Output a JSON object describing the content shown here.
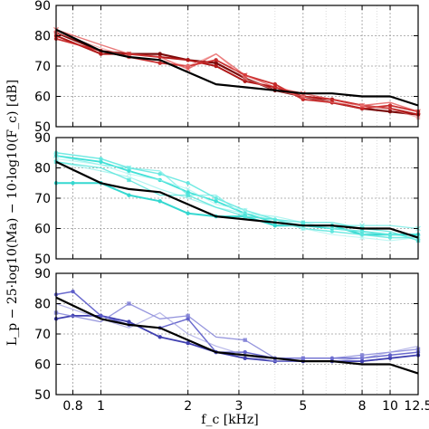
{
  "figure": {
    "ylabel": "L_p − 25·log10(Ma) − 10·log10(F_c) [dB]",
    "xlabel": "f_c [kHz]"
  },
  "chart_data": [
    {
      "type": "line",
      "panel": "top",
      "xscale": "log",
      "xlim": [
        0.7,
        12.5
      ],
      "ylim": [
        50,
        90
      ],
      "yticks": [
        50,
        60,
        70,
        80,
        90
      ],
      "xticks": [
        0.8,
        1,
        2,
        3,
        5,
        8,
        10,
        12.5
      ],
      "xtick_labels": [
        "0.8",
        "1",
        "2",
        "3",
        "5",
        "8",
        "10",
        "12.5"
      ],
      "grid": true,
      "reference": {
        "color": "#000000",
        "x": [
          0.7,
          1.0,
          1.25,
          1.6,
          2.0,
          2.5,
          3.15,
          4.0,
          5.0,
          6.3,
          8.0,
          10.0,
          12.5
        ],
        "y": [
          82,
          75,
          73,
          72,
          68,
          64,
          63,
          62,
          61,
          61,
          60,
          60,
          57
        ]
      },
      "series": [
        {
          "color": "#7a0b0b",
          "width": 2.2,
          "opacity": 1.0,
          "marker": "circle",
          "x": [
            0.7,
            1.0,
            1.25,
            1.6,
            2.0,
            2.5,
            3.15,
            4.0,
            5.0,
            6.3,
            8.0,
            10.0,
            12.5
          ],
          "y": [
            81,
            75,
            74,
            74,
            72,
            71,
            66,
            62,
            60,
            58,
            56,
            55,
            54
          ]
        },
        {
          "color": "#b01818",
          "width": 2.0,
          "opacity": 1.0,
          "marker": "circle",
          "x": [
            0.7,
            1.0,
            1.25,
            1.6,
            2.0,
            2.5,
            3.15,
            4.0,
            5.0,
            6.3,
            8.0,
            10.0,
            12.5
          ],
          "y": [
            80,
            74,
            74,
            73,
            72,
            70,
            65,
            63,
            60,
            59,
            57,
            56,
            54
          ]
        },
        {
          "color": "#c62828",
          "width": 1.8,
          "opacity": 0.95,
          "marker": "circle",
          "x": [
            0.7,
            1.0,
            1.25,
            1.6,
            2.0,
            2.5,
            3.15,
            4.0,
            5.0,
            6.3,
            8.0,
            10.0,
            12.5
          ],
          "y": [
            79,
            75,
            73,
            71,
            70,
            72,
            67,
            64,
            59,
            58,
            56,
            57,
            55
          ]
        },
        {
          "color": "#e04040",
          "width": 1.4,
          "opacity": 0.7,
          "marker": "x",
          "x": [
            0.7,
            1.0,
            1.25,
            1.6,
            2.0,
            2.5,
            3.15,
            4.0,
            5.0,
            6.3,
            8.0,
            10.0,
            12.5
          ],
          "y": [
            82,
            77,
            74,
            73,
            69,
            74,
            67,
            63,
            61,
            59,
            57,
            58,
            55
          ]
        },
        {
          "color": "#f08080",
          "width": 1.2,
          "opacity": 0.6,
          "marker": "square",
          "x": [
            0.7,
            1.0,
            1.25,
            1.6,
            2.0,
            2.5,
            3.15,
            4.0,
            5.0,
            6.3,
            8.0,
            10.0,
            12.5
          ],
          "y": [
            81,
            76,
            73,
            72,
            70,
            74,
            66,
            62,
            60,
            58,
            57,
            56,
            53
          ]
        }
      ]
    },
    {
      "type": "line",
      "panel": "middle",
      "xscale": "log",
      "xlim": [
        0.7,
        12.5
      ],
      "ylim": [
        50,
        90
      ],
      "yticks": [
        50,
        60,
        70,
        80,
        90
      ],
      "xticks": [
        0.8,
        1,
        2,
        3,
        5,
        8,
        10,
        12.5
      ],
      "xtick_labels": [
        "0.8",
        "1",
        "2",
        "3",
        "5",
        "8",
        "10",
        "12.5"
      ],
      "grid": true,
      "reference": {
        "color": "#000000",
        "x": [
          0.7,
          1.0,
          1.25,
          1.6,
          2.0,
          2.5,
          3.15,
          4.0,
          5.0,
          6.3,
          8.0,
          10.0,
          12.5
        ],
        "y": [
          82,
          75,
          73,
          72,
          68,
          64,
          63,
          62,
          61,
          61,
          60,
          60,
          57
        ]
      },
      "series": [
        {
          "color": "#35d8d0",
          "width": 2.0,
          "opacity": 1.0,
          "marker": "circle",
          "x": [
            0.7,
            0.8,
            1.0,
            1.25,
            1.6,
            2.0,
            2.5,
            3.15,
            4.0,
            5.0,
            6.3,
            8.0,
            10.0,
            12.5
          ],
          "y": [
            75,
            75,
            75,
            71,
            69,
            65,
            64,
            64,
            61,
            61,
            61,
            58,
            58,
            58
          ]
        },
        {
          "color": "#3ee0d6",
          "width": 1.8,
          "opacity": 1.0,
          "marker": "circle",
          "x": [
            0.7,
            1.0,
            1.25,
            1.6,
            2.0,
            2.5,
            3.15,
            4.0,
            5.0,
            6.3,
            8.0,
            10.0,
            12.5
          ],
          "y": [
            84,
            82,
            79,
            76,
            72,
            69,
            65,
            62,
            61,
            60,
            59,
            58,
            58
          ]
        },
        {
          "color": "#5ce6de",
          "width": 1.5,
          "opacity": 0.85,
          "marker": "circle",
          "x": [
            0.7,
            1.0,
            1.25,
            1.6,
            2.0,
            2.5,
            3.15,
            4.0,
            5.0,
            6.3,
            8.0,
            10.0,
            12.5
          ],
          "y": [
            85,
            83,
            80,
            78,
            75,
            70,
            66,
            63,
            60,
            59,
            58,
            57,
            57
          ]
        },
        {
          "color": "#72ece6",
          "width": 1.3,
          "opacity": 0.75,
          "marker": "x",
          "x": [
            0.7,
            1.0,
            1.25,
            1.6,
            2.0,
            2.5,
            3.15,
            4.0,
            5.0,
            6.3,
            8.0,
            10.0,
            12.5
          ],
          "y": [
            84,
            81,
            80,
            79,
            71,
            71,
            64,
            63,
            61,
            61,
            61,
            61,
            60
          ]
        },
        {
          "color": "#8ff0ea",
          "width": 1.2,
          "opacity": 0.7,
          "marker": "none",
          "x": [
            0.7,
            1.0,
            1.25,
            1.6,
            2.0,
            2.5,
            3.15,
            4.0,
            5.0,
            6.3,
            8.0,
            10.0,
            12.5
          ],
          "y": [
            82,
            79,
            77,
            73,
            70,
            67,
            65,
            64,
            62,
            60,
            59,
            58,
            57
          ]
        },
        {
          "color": "#a8f4f0",
          "width": 1.1,
          "opacity": 0.7,
          "marker": "x",
          "x": [
            0.7,
            1.0,
            1.25,
            1.6,
            2.0,
            2.5,
            3.15,
            4.0,
            5.0,
            6.3,
            8.0,
            10.0,
            12.5
          ],
          "y": [
            83,
            81,
            78,
            76,
            73,
            68,
            66,
            62,
            60,
            58,
            57,
            56,
            57
          ]
        },
        {
          "color": "#4fe3da",
          "width": 1.3,
          "opacity": 0.8,
          "marker": "square",
          "x": [
            0.7,
            1.0,
            1.25,
            1.6,
            2.0,
            2.5,
            3.15,
            4.0,
            5.0,
            6.3,
            8.0,
            10.0,
            12.5
          ],
          "y": [
            82,
            80,
            76,
            71,
            71,
            67,
            64,
            63,
            62,
            62,
            60,
            59,
            56
          ]
        }
      ]
    },
    {
      "type": "line",
      "panel": "bottom",
      "xscale": "log",
      "xlim": [
        0.7,
        12.5
      ],
      "ylim": [
        50,
        90
      ],
      "yticks": [
        50,
        60,
        70,
        80,
        90
      ],
      "xticks": [
        0.8,
        1,
        2,
        3,
        5,
        8,
        10,
        12.5
      ],
      "xtick_labels": [
        "0.8",
        "1",
        "2",
        "3",
        "5",
        "8",
        "10",
        "12.5"
      ],
      "grid": true,
      "reference": {
        "color": "#000000",
        "x": [
          0.7,
          1.0,
          1.25,
          1.6,
          2.0,
          2.5,
          3.15,
          4.0,
          5.0,
          6.3,
          8.0,
          10.0,
          12.5
        ],
        "y": [
          82,
          75,
          73,
          72,
          68,
          64,
          63,
          62,
          61,
          61,
          60,
          60,
          57
        ]
      },
      "series": [
        {
          "color": "#4040b0",
          "width": 1.8,
          "opacity": 1.0,
          "marker": "circle",
          "x": [
            0.7,
            0.8,
            1.0,
            1.25,
            1.6,
            2.0,
            2.5,
            3.15,
            4.0,
            5.0,
            6.3,
            8.0,
            10.0,
            12.5
          ],
          "y": [
            75,
            76,
            76,
            74,
            69,
            67,
            64,
            62,
            61,
            61,
            61,
            61,
            62,
            63
          ]
        },
        {
          "color": "#5a5ac8",
          "width": 1.5,
          "opacity": 0.9,
          "marker": "circle",
          "x": [
            0.7,
            0.8,
            1.0,
            1.25,
            1.6,
            2.0,
            2.5,
            3.15,
            4.0,
            5.0,
            6.3,
            8.0,
            10.0,
            12.5
          ],
          "y": [
            83,
            84,
            76,
            73,
            72,
            75,
            64,
            64,
            62,
            62,
            62,
            62,
            63,
            64
          ]
        },
        {
          "color": "#7a7ad4",
          "width": 1.3,
          "opacity": 0.8,
          "marker": "square",
          "x": [
            0.7,
            1.0,
            1.25,
            1.6,
            2.0,
            2.5,
            3.15,
            4.0,
            5.0,
            6.3,
            8.0,
            10.0,
            12.5
          ],
          "y": [
            77,
            74,
            80,
            75,
            76,
            69,
            68,
            62,
            62,
            62,
            63,
            64,
            65
          ]
        },
        {
          "color": "#9a9ae0",
          "width": 1.2,
          "opacity": 0.7,
          "marker": "none",
          "x": [
            0.7,
            1.0,
            1.25,
            1.6,
            2.0,
            2.5,
            3.15,
            4.0,
            5.0,
            6.3,
            8.0,
            10.0,
            12.5
          ],
          "y": [
            80,
            75,
            72,
            77,
            70,
            66,
            63,
            61,
            61,
            61,
            62,
            64,
            66
          ]
        }
      ]
    }
  ]
}
